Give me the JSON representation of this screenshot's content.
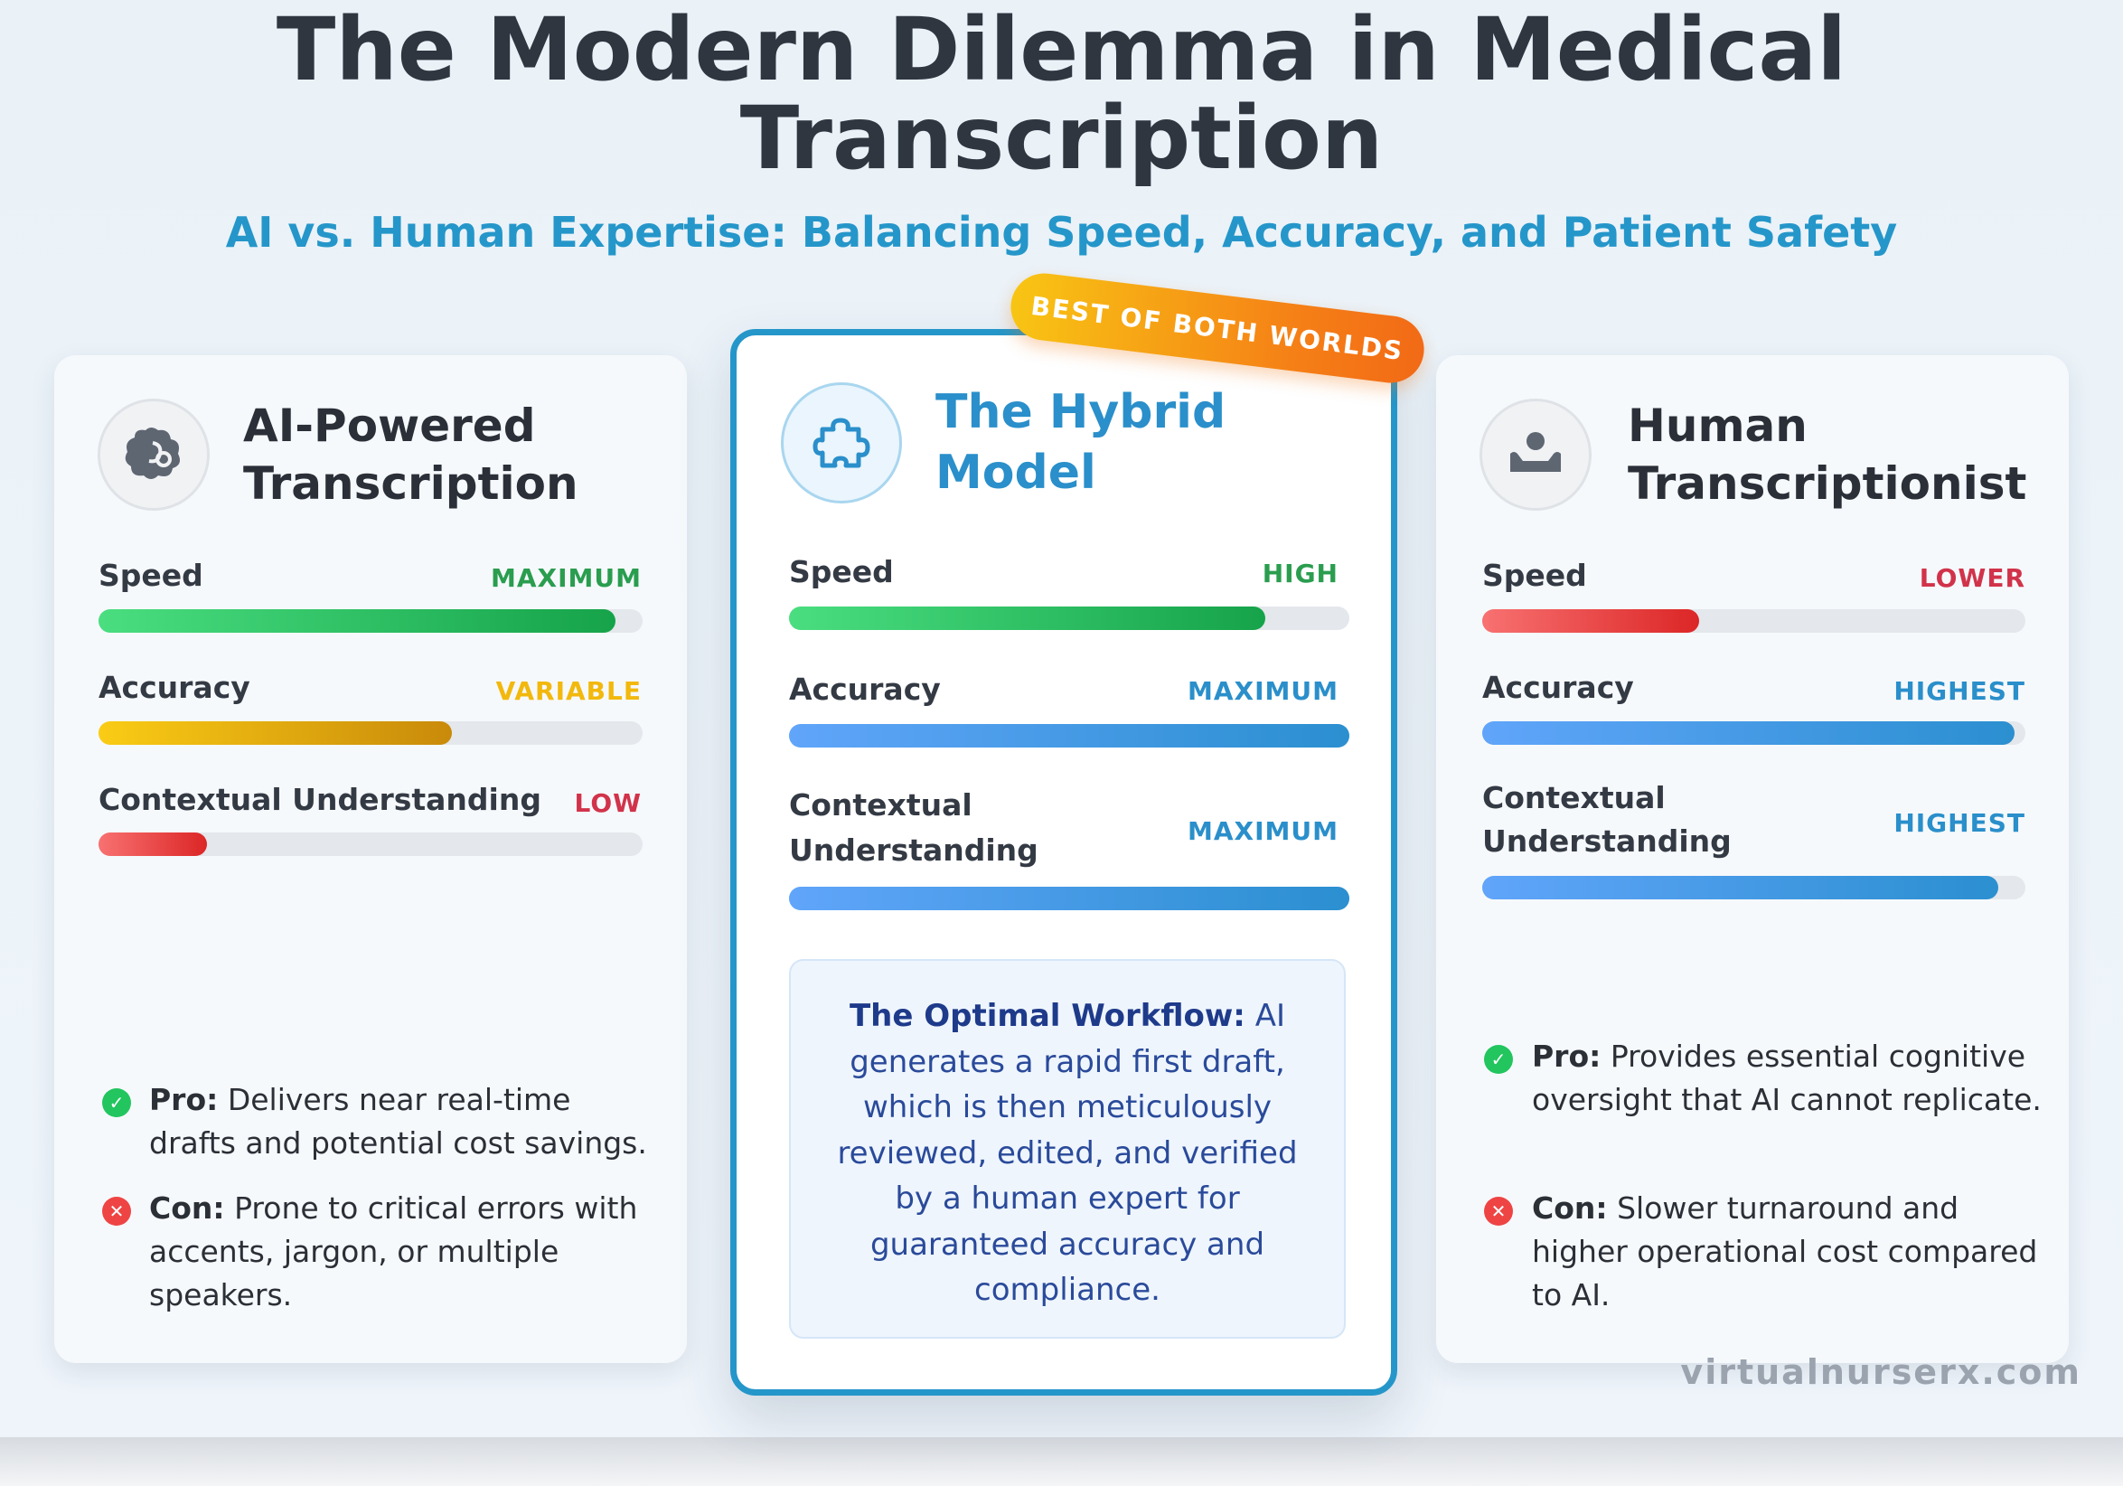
{
  "header": {
    "title": "The Modern Dilemma in Medical Transcription",
    "subtitle": "AI vs. Human Expertise: Balancing Speed, Accuracy, and Patient Safety"
  },
  "colors": {
    "accent": "#2596c9",
    "high": "#2a9d4f",
    "variable": "#f2b80c",
    "low": "#d1334a",
    "maximum": "#2a8fca"
  },
  "cards": {
    "ai": {
      "icon": "brain-icon",
      "title": "AI-Powered Transcription",
      "metrics": [
        {
          "label": "Speed",
          "value": "MAXIMUM",
          "level": 0.95
        },
        {
          "label": "Accuracy",
          "value": "VARIABLE",
          "level": 0.65
        },
        {
          "label": "Contextual Understanding",
          "value": "LOW",
          "level": 0.2
        }
      ],
      "pro_label": "Pro:",
      "pro_text": "Delivers near real-time drafts and potential cost savings.",
      "con_label": "Con:",
      "con_text": "Prone to critical errors with accents, jargon, or multiple speakers."
    },
    "hybrid": {
      "icon": "puzzle-piece-icon",
      "badge": "BEST OF BOTH WORLDS",
      "title": "The Hybrid Model",
      "metrics": [
        {
          "label": "Speed",
          "value": "HIGH",
          "level": 0.85
        },
        {
          "label": "Accuracy",
          "value": "MAXIMUM",
          "level": 1.0
        },
        {
          "label": "Contextual Understanding",
          "value": "MAXIMUM",
          "level": 1.0
        }
      ],
      "workflow_label": "The Optimal Workflow:",
      "workflow_text": "AI generates a rapid first draft, which is then meticulously reviewed, edited, and verified by a human expert for guaranteed accuracy and compliance."
    },
    "human": {
      "icon": "user-at-desk-icon",
      "title": "Human Transcriptionist",
      "metrics": [
        {
          "label": "Speed",
          "value": "LOWER",
          "level": 0.4
        },
        {
          "label": "Accuracy",
          "value": "HIGHEST",
          "level": 0.98
        },
        {
          "label": "Contextual Understanding",
          "value": "HIGHEST",
          "level": 0.95
        }
      ],
      "pro_label": "Pro:",
      "pro_text": "Provides essential cognitive oversight that AI cannot replicate.",
      "con_label": "Con:",
      "con_text": "Slower turnaround and higher operational cost compared to AI."
    }
  },
  "watermark": "virtualnurserx.com"
}
